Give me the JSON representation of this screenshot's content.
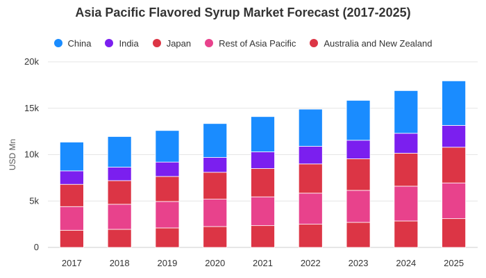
{
  "chart_data": {
    "type": "bar",
    "stacked": true,
    "title": "Asia Pacific Flavored Syrup Market Forecast (2017-2025)",
    "xlabel": "",
    "ylabel": "USD Mn",
    "categories": [
      "2017",
      "2018",
      "2019",
      "2020",
      "2021",
      "2022",
      "2023",
      "2024",
      "2025"
    ],
    "ylim": [
      0,
      20000
    ],
    "yticks": [
      0,
      5000,
      10000,
      15000,
      20000
    ],
    "ytick_labels": [
      "0",
      "5k",
      "10k",
      "15k",
      "20k"
    ],
    "grid": true,
    "legend_position": "top",
    "series": [
      {
        "name": "Australia and New Zealand",
        "color": "#dc3545",
        "values": [
          1850,
          1950,
          2100,
          2250,
          2350,
          2500,
          2700,
          2850,
          3100
        ]
      },
      {
        "name": "Rest of Asia Pacific",
        "color": "#e8428c",
        "values": [
          2550,
          2700,
          2850,
          2950,
          3100,
          3350,
          3450,
          3750,
          3850
        ]
      },
      {
        "name": "Japan",
        "color": "#dc3545",
        "values": [
          2400,
          2550,
          2700,
          2900,
          3050,
          3150,
          3400,
          3550,
          3850
        ]
      },
      {
        "name": "India",
        "color": "#7b1fef",
        "values": [
          1450,
          1450,
          1550,
          1600,
          1800,
          1900,
          2000,
          2150,
          2350
        ]
      },
      {
        "name": "China",
        "color": "#1a8cff",
        "values": [
          3100,
          3300,
          3400,
          3650,
          3800,
          4000,
          4300,
          4600,
          4800
        ]
      }
    ],
    "legend_order": [
      "China",
      "India",
      "Japan",
      "Rest of Asia Pacific",
      "Australia and New Zealand"
    ]
  }
}
